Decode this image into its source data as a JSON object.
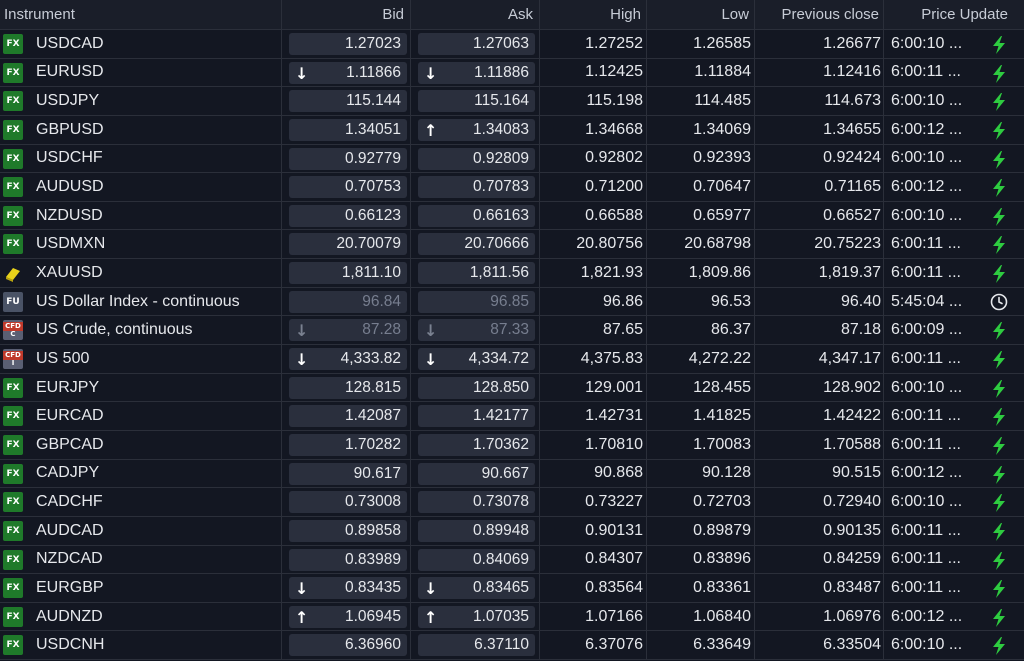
{
  "headers": {
    "instrument": "Instrument",
    "bid": "Bid",
    "ask": "Ask",
    "high": "High",
    "low": "Low",
    "prev": "Previous close",
    "update": "Price Update"
  },
  "colors": {
    "bolt": "#2ecc40",
    "fx_badge": "#1f7a2a",
    "background": "#131722"
  },
  "rows": [
    {
      "badge": "FX",
      "name": "USDCAD",
      "bid": "1.27023",
      "bid_dir": "",
      "ask": "1.27063",
      "ask_dir": "",
      "high": "1.27252",
      "low": "1.26585",
      "prev": "1.26677",
      "time": "6:00:10 ...",
      "icon": "bolt"
    },
    {
      "badge": "FX",
      "name": "EURUSD",
      "bid": "1.11866",
      "bid_dir": "down",
      "ask": "1.11886",
      "ask_dir": "down",
      "high": "1.12425",
      "low": "1.11884",
      "prev": "1.12416",
      "time": "6:00:11 ...",
      "icon": "bolt"
    },
    {
      "badge": "FX",
      "name": "USDJPY",
      "bid": "115.144",
      "bid_dir": "",
      "ask": "115.164",
      "ask_dir": "",
      "high": "115.198",
      "low": "114.485",
      "prev": "114.673",
      "time": "6:00:10 ...",
      "icon": "bolt"
    },
    {
      "badge": "FX",
      "name": "GBPUSD",
      "bid": "1.34051",
      "bid_dir": "",
      "ask": "1.34083",
      "ask_dir": "up",
      "high": "1.34668",
      "low": "1.34069",
      "prev": "1.34655",
      "time": "6:00:12 ...",
      "icon": "bolt"
    },
    {
      "badge": "FX",
      "name": "USDCHF",
      "bid": "0.92779",
      "bid_dir": "",
      "ask": "0.92809",
      "ask_dir": "",
      "high": "0.92802",
      "low": "0.92393",
      "prev": "0.92424",
      "time": "6:00:10 ...",
      "icon": "bolt"
    },
    {
      "badge": "FX",
      "name": "AUDUSD",
      "bid": "0.70753",
      "bid_dir": "",
      "ask": "0.70783",
      "ask_dir": "",
      "high": "0.71200",
      "low": "0.70647",
      "prev": "0.71165",
      "time": "6:00:12 ...",
      "icon": "bolt"
    },
    {
      "badge": "FX",
      "name": "NZDUSD",
      "bid": "0.66123",
      "bid_dir": "",
      "ask": "0.66163",
      "ask_dir": "",
      "high": "0.66588",
      "low": "0.65977",
      "prev": "0.66527",
      "time": "6:00:10 ...",
      "icon": "bolt"
    },
    {
      "badge": "FX",
      "name": "USDMXN",
      "bid": "20.70079",
      "bid_dir": "",
      "ask": "20.70666",
      "ask_dir": "",
      "high": "20.80756",
      "low": "20.68798",
      "prev": "20.75223",
      "time": "6:00:11 ...",
      "icon": "bolt"
    },
    {
      "badge": "GOLD",
      "name": "XAUUSD",
      "bid": "1,811.10",
      "bid_dir": "",
      "ask": "1,811.56",
      "ask_dir": "",
      "high": "1,821.93",
      "low": "1,809.86",
      "prev": "1,819.37",
      "time": "6:00:11 ...",
      "icon": "bolt"
    },
    {
      "badge": "FU",
      "name": "US Dollar Index - continuous",
      "bid": "96.84",
      "bid_dir": "",
      "ask": "96.85",
      "ask_dir": "",
      "high": "96.86",
      "low": "96.53",
      "prev": "96.40",
      "time": "5:45:04 ...",
      "icon": "clock",
      "muted": true
    },
    {
      "badge": "CFD C",
      "name": "US Crude, continuous",
      "bid": "87.28",
      "bid_dir": "down",
      "ask": "87.33",
      "ask_dir": "down",
      "high": "87.65",
      "low": "86.37",
      "prev": "87.18",
      "time": "6:00:09 ...",
      "icon": "bolt",
      "muted": true
    },
    {
      "badge": "CFD I",
      "name": "US 500",
      "bid": "4,333.82",
      "bid_dir": "down",
      "ask": "4,334.72",
      "ask_dir": "down",
      "high": "4,375.83",
      "low": "4,272.22",
      "prev": "4,347.17",
      "time": "6:00:11 ...",
      "icon": "bolt"
    },
    {
      "badge": "FX",
      "name": "EURJPY",
      "bid": "128.815",
      "bid_dir": "",
      "ask": "128.850",
      "ask_dir": "",
      "high": "129.001",
      "low": "128.455",
      "prev": "128.902",
      "time": "6:00:10 ...",
      "icon": "bolt"
    },
    {
      "badge": "FX",
      "name": "EURCAD",
      "bid": "1.42087",
      "bid_dir": "",
      "ask": "1.42177",
      "ask_dir": "",
      "high": "1.42731",
      "low": "1.41825",
      "prev": "1.42422",
      "time": "6:00:11 ...",
      "icon": "bolt"
    },
    {
      "badge": "FX",
      "name": "GBPCAD",
      "bid": "1.70282",
      "bid_dir": "",
      "ask": "1.70362",
      "ask_dir": "",
      "high": "1.70810",
      "low": "1.70083",
      "prev": "1.70588",
      "time": "6:00:11 ...",
      "icon": "bolt"
    },
    {
      "badge": "FX",
      "name": "CADJPY",
      "bid": "90.617",
      "bid_dir": "",
      "ask": "90.667",
      "ask_dir": "",
      "high": "90.868",
      "low": "90.128",
      "prev": "90.515",
      "time": "6:00:12 ...",
      "icon": "bolt"
    },
    {
      "badge": "FX",
      "name": "CADCHF",
      "bid": "0.73008",
      "bid_dir": "",
      "ask": "0.73078",
      "ask_dir": "",
      "high": "0.73227",
      "low": "0.72703",
      "prev": "0.72940",
      "time": "6:00:10 ...",
      "icon": "bolt"
    },
    {
      "badge": "FX",
      "name": "AUDCAD",
      "bid": "0.89858",
      "bid_dir": "",
      "ask": "0.89948",
      "ask_dir": "",
      "high": "0.90131",
      "low": "0.89879",
      "prev": "0.90135",
      "time": "6:00:11 ...",
      "icon": "bolt"
    },
    {
      "badge": "FX",
      "name": "NZDCAD",
      "bid": "0.83989",
      "bid_dir": "",
      "ask": "0.84069",
      "ask_dir": "",
      "high": "0.84307",
      "low": "0.83896",
      "prev": "0.84259",
      "time": "6:00:11 ...",
      "icon": "bolt"
    },
    {
      "badge": "FX",
      "name": "EURGBP",
      "bid": "0.83435",
      "bid_dir": "down",
      "ask": "0.83465",
      "ask_dir": "down",
      "high": "0.83564",
      "low": "0.83361",
      "prev": "0.83487",
      "time": "6:00:11 ...",
      "icon": "bolt"
    },
    {
      "badge": "FX",
      "name": "AUDNZD",
      "bid": "1.06945",
      "bid_dir": "up",
      "ask": "1.07035",
      "ask_dir": "up",
      "high": "1.07166",
      "low": "1.06840",
      "prev": "1.06976",
      "time": "6:00:12 ...",
      "icon": "bolt"
    },
    {
      "badge": "FX",
      "name": "USDCNH",
      "bid": "6.36960",
      "bid_dir": "",
      "ask": "6.37110",
      "ask_dir": "",
      "high": "6.37076",
      "low": "6.33649",
      "prev": "6.33504",
      "time": "6:00:10 ...",
      "icon": "bolt"
    }
  ]
}
